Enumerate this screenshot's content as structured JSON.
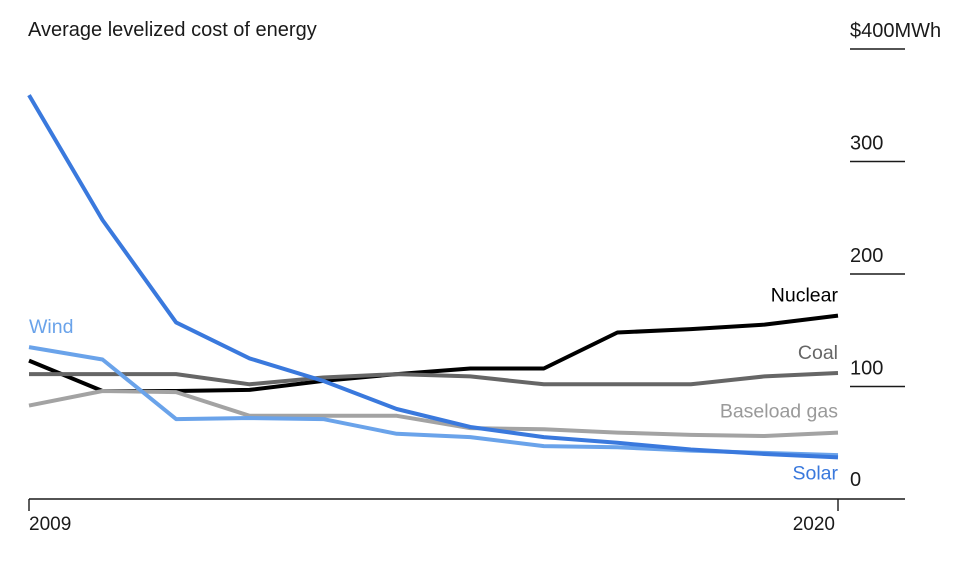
{
  "chart_data": {
    "type": "line",
    "title": "Average levelized cost of energy",
    "xlabel": "",
    "ylabel": "",
    "x": [
      2009,
      2010,
      2011,
      2012,
      2013,
      2014,
      2015,
      2016,
      2017,
      2018,
      2019,
      2020
    ],
    "xlim": [
      2009,
      2020
    ],
    "ylim": [
      0,
      400
    ],
    "y_ticks": [
      0,
      100,
      200,
      300,
      400
    ],
    "y_tick_labels": [
      "0",
      "100",
      "200",
      "300",
      "$400MWh"
    ],
    "x_tick_labels": [
      "2009",
      "2020"
    ],
    "grid": false,
    "series": [
      {
        "name": "Nuclear",
        "color": "#000000",
        "values": [
          123,
          96,
          96,
          97,
          105,
          111,
          116,
          116,
          148,
          151,
          155,
          163
        ]
      },
      {
        "name": "Coal",
        "color": "#666666",
        "values": [
          111,
          111,
          111,
          102,
          108,
          111,
          109,
          102,
          102,
          102,
          109,
          112
        ]
      },
      {
        "name": "Baseload gas",
        "color": "#a3a3a3",
        "values": [
          83,
          96,
          95,
          74,
          74,
          74,
          63,
          62,
          59,
          57,
          56,
          59
        ]
      },
      {
        "name": "Wind",
        "color": "#6aa3ea",
        "values": [
          135,
          124,
          71,
          72,
          71,
          58,
          55,
          47,
          46,
          43,
          41,
          39
        ]
      },
      {
        "name": "Solar",
        "color": "#3a79dd",
        "values": [
          359,
          248,
          157,
          125,
          105,
          80,
          64,
          55,
          50,
          44,
          40,
          37
        ]
      }
    ]
  }
}
